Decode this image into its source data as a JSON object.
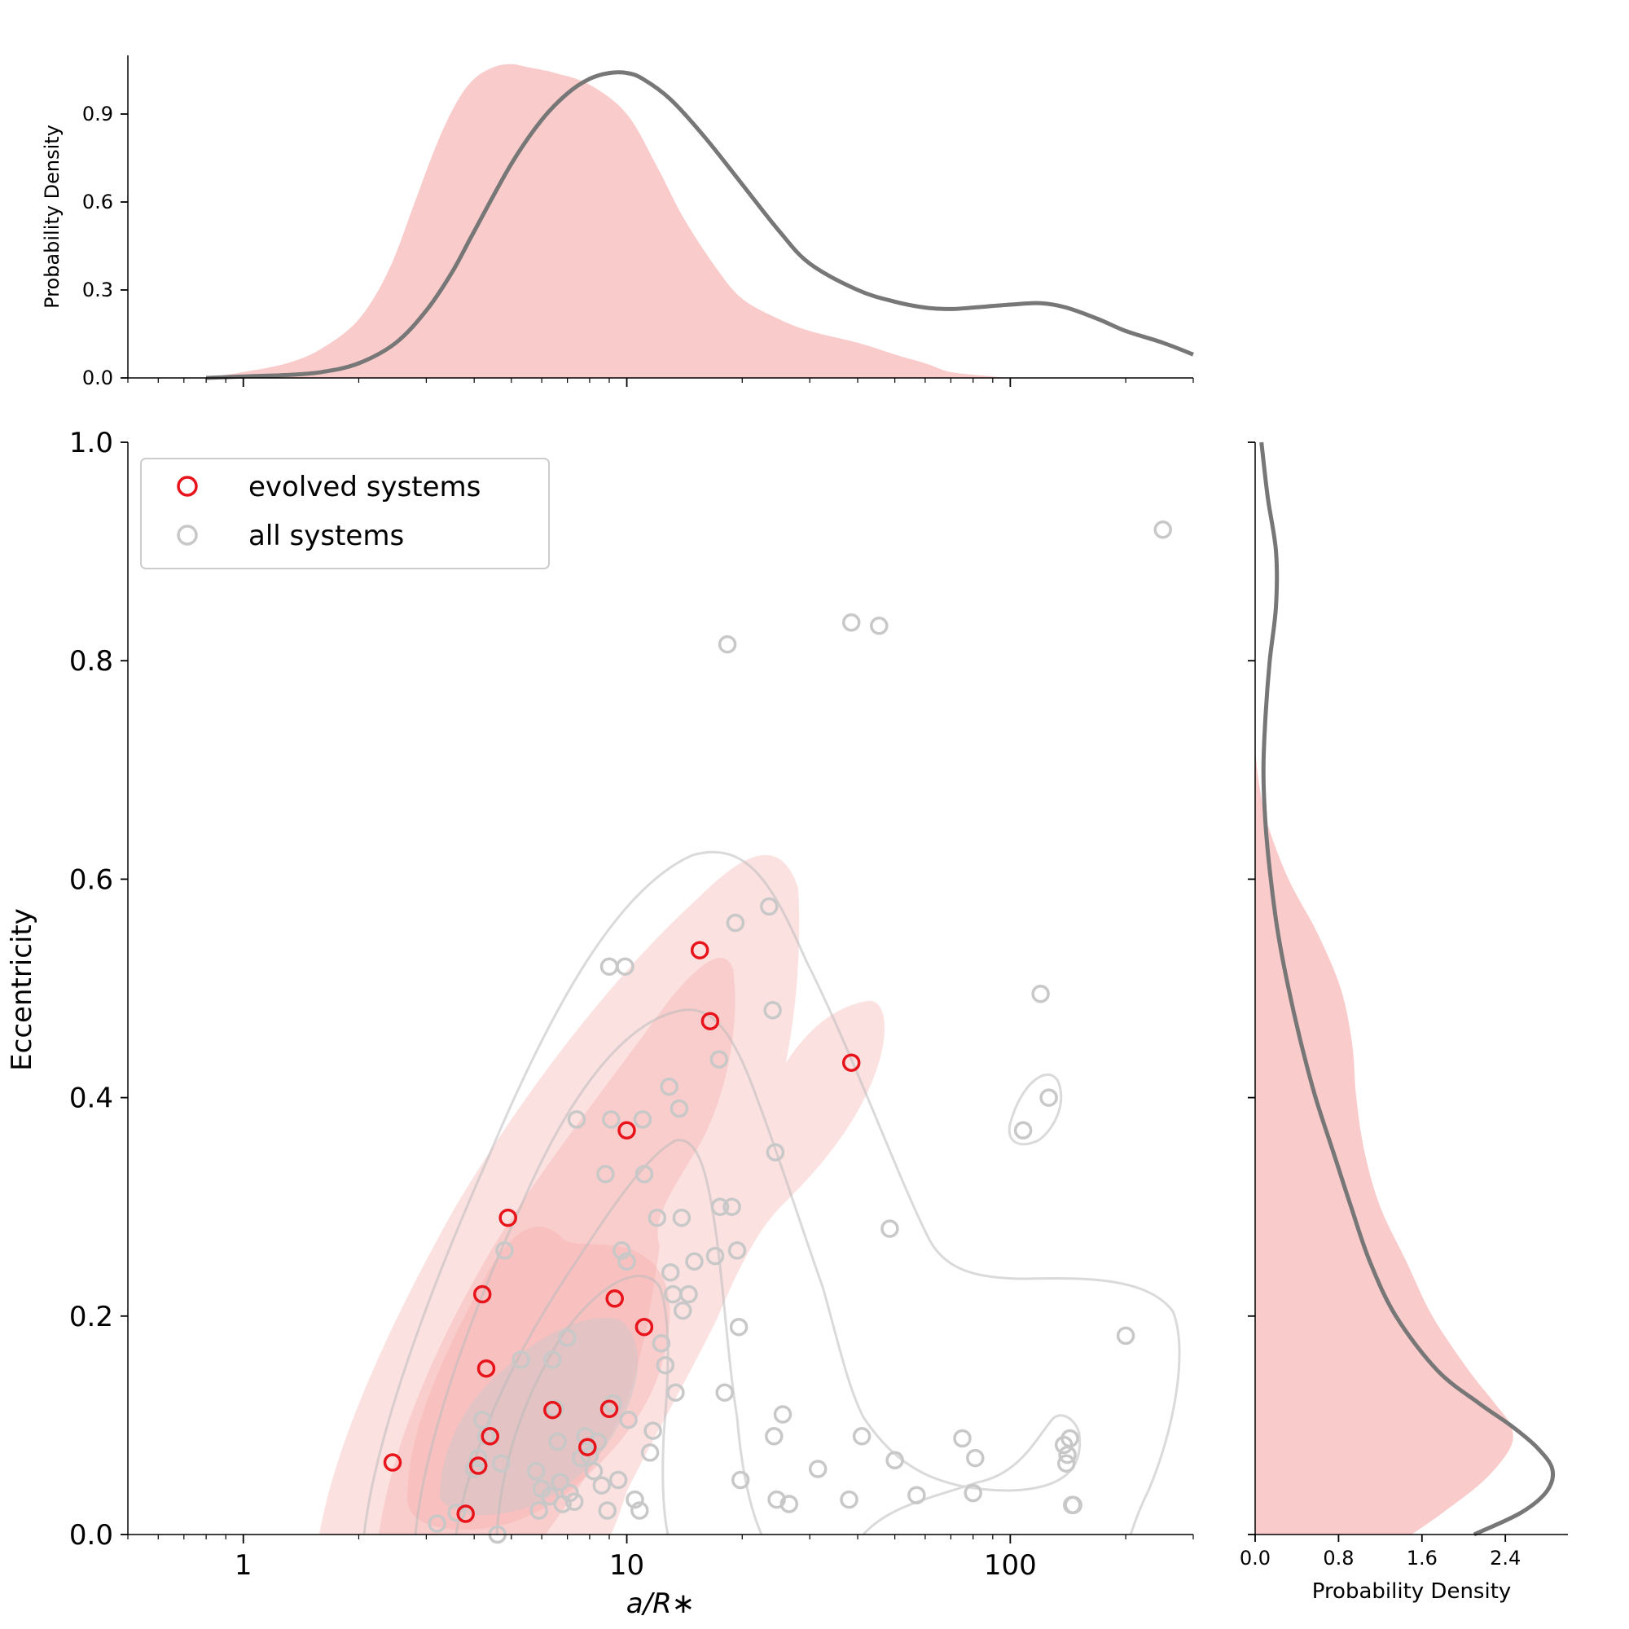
{
  "chart_data": {
    "type": "scatter",
    "xscale": "log",
    "xlim": [
      0.5,
      300
    ],
    "ylim": [
      0,
      1
    ],
    "xlabel": "a/R∗",
    "ylabel": "Eccentricity",
    "xticks": [
      {
        "value": 1,
        "label": "1"
      },
      {
        "value": 10,
        "label": "10"
      },
      {
        "value": 100,
        "label": "100"
      }
    ],
    "yticks": [
      {
        "value": 0.0,
        "label": "0.0"
      },
      {
        "value": 0.2,
        "label": "0.2"
      },
      {
        "value": 0.4,
        "label": "0.4"
      },
      {
        "value": 0.6,
        "label": "0.6"
      },
      {
        "value": 0.8,
        "label": "0.8"
      },
      {
        "value": 1.0,
        "label": "1.0"
      }
    ],
    "legend": {
      "placement": "top-left",
      "entries": [
        {
          "label": "evolved systems",
          "color": "#e8141b"
        },
        {
          "label": "all systems",
          "color": "#c8c8c8"
        }
      ]
    },
    "series": [
      {
        "name": "all systems",
        "color": "#c8c8c8",
        "points": [
          [
            3.2,
            0.01
          ],
          [
            3.6,
            0.02
          ],
          [
            4.0,
            0.06
          ],
          [
            4.1,
            0.07
          ],
          [
            4.2,
            0.105
          ],
          [
            4.3,
            0.09
          ],
          [
            4.6,
            0.0
          ],
          [
            4.7,
            0.065
          ],
          [
            4.8,
            0.26
          ],
          [
            5.3,
            0.16
          ],
          [
            5.8,
            0.058
          ],
          [
            5.9,
            0.022
          ],
          [
            6.0,
            0.042
          ],
          [
            6.3,
            0.035
          ],
          [
            6.4,
            0.16
          ],
          [
            6.5,
            0.115
          ],
          [
            6.6,
            0.085
          ],
          [
            6.7,
            0.048
          ],
          [
            6.8,
            0.028
          ],
          [
            7.0,
            0.18
          ],
          [
            7.1,
            0.038
          ],
          [
            7.3,
            0.03
          ],
          [
            7.4,
            0.38
          ],
          [
            7.6,
            0.07
          ],
          [
            7.8,
            0.09
          ],
          [
            8.0,
            0.072
          ],
          [
            8.2,
            0.058
          ],
          [
            8.4,
            0.085
          ],
          [
            8.6,
            0.045
          ],
          [
            8.8,
            0.33
          ],
          [
            8.9,
            0.022
          ],
          [
            9.0,
            0.52
          ],
          [
            9.1,
            0.38
          ],
          [
            9.2,
            0.12
          ],
          [
            9.5,
            0.05
          ],
          [
            9.7,
            0.26
          ],
          [
            9.9,
            0.52
          ],
          [
            10.0,
            0.25
          ],
          [
            10.1,
            0.105
          ],
          [
            10.5,
            0.032
          ],
          [
            10.8,
            0.022
          ],
          [
            11.0,
            0.38
          ],
          [
            11.1,
            0.33
          ],
          [
            11.5,
            0.075
          ],
          [
            11.7,
            0.095
          ],
          [
            12.0,
            0.29
          ],
          [
            12.3,
            0.175
          ],
          [
            12.6,
            0.155
          ],
          [
            12.9,
            0.41
          ],
          [
            13.0,
            0.24
          ],
          [
            13.2,
            0.22
          ],
          [
            13.4,
            0.13
          ],
          [
            13.7,
            0.39
          ],
          [
            13.9,
            0.29
          ],
          [
            14.0,
            0.205
          ],
          [
            14.5,
            0.22
          ],
          [
            15.0,
            0.25
          ],
          [
            17.0,
            0.255
          ],
          [
            17.4,
            0.435
          ],
          [
            17.5,
            0.3
          ],
          [
            18.0,
            0.13
          ],
          [
            18.3,
            0.815
          ],
          [
            18.8,
            0.3
          ],
          [
            19.2,
            0.56
          ],
          [
            19.4,
            0.26
          ],
          [
            19.6,
            0.19
          ],
          [
            19.8,
            0.05
          ],
          [
            23.5,
            0.575
          ],
          [
            24.0,
            0.48
          ],
          [
            24.4,
            0.35
          ],
          [
            24.2,
            0.09
          ],
          [
            24.6,
            0.032
          ],
          [
            25.5,
            0.11
          ],
          [
            26.5,
            0.028
          ],
          [
            31.5,
            0.06
          ],
          [
            38.0,
            0.032
          ],
          [
            38.5,
            0.835
          ],
          [
            41.0,
            0.09
          ],
          [
            45.5,
            0.832
          ],
          [
            48.5,
            0.28
          ],
          [
            50.0,
            0.068
          ],
          [
            57.0,
            0.036
          ],
          [
            75.0,
            0.088
          ],
          [
            80.0,
            0.038
          ],
          [
            81.0,
            0.07
          ],
          [
            108.0,
            0.37
          ],
          [
            120.0,
            0.495
          ],
          [
            126.0,
            0.4
          ],
          [
            138.0,
            0.082
          ],
          [
            140.0,
            0.065
          ],
          [
            141.0,
            0.073
          ],
          [
            143.0,
            0.088
          ],
          [
            145.0,
            0.027
          ],
          [
            146.0,
            0.027
          ],
          [
            200.0,
            0.182
          ],
          [
            250.0,
            0.92
          ]
        ]
      },
      {
        "name": "evolved systems",
        "color": "#e8141b",
        "points": [
          [
            2.45,
            0.066
          ],
          [
            3.8,
            0.019
          ],
          [
            4.1,
            0.063
          ],
          [
            4.2,
            0.22
          ],
          [
            4.3,
            0.152
          ],
          [
            4.4,
            0.09
          ],
          [
            4.9,
            0.29
          ],
          [
            6.4,
            0.114
          ],
          [
            7.9,
            0.08
          ],
          [
            9.0,
            0.115
          ],
          [
            9.3,
            0.216
          ],
          [
            10.0,
            0.37
          ],
          [
            11.1,
            0.19
          ],
          [
            15.5,
            0.535
          ],
          [
            16.5,
            0.47
          ],
          [
            38.5,
            0.432
          ]
        ]
      }
    ],
    "marginal_top": {
      "ylabel": "Probability Density",
      "ylim": [
        0,
        1.1
      ],
      "yticks": [
        {
          "value": 0.0,
          "label": "0.0"
        },
        {
          "value": 0.3,
          "label": "0.3"
        },
        {
          "value": 0.6,
          "label": "0.6"
        },
        {
          "value": 0.9,
          "label": "0.9"
        }
      ],
      "evolved_density": {
        "x": [
          0.8,
          1.0,
          1.3,
          1.6,
          2.0,
          2.4,
          2.8,
          3.2,
          3.6,
          4.0,
          4.5,
          5.0,
          5.5,
          6.5,
          8.0,
          10.0,
          12.0,
          14.0,
          17.0,
          20.0,
          25.0,
          30.0,
          40.0,
          50.0,
          60.0,
          70.0,
          90.0,
          100.0
        ],
        "y": [
          0.0,
          0.02,
          0.05,
          0.1,
          0.2,
          0.37,
          0.6,
          0.8,
          0.94,
          1.02,
          1.06,
          1.07,
          1.06,
          1.04,
          1.0,
          0.9,
          0.72,
          0.55,
          0.38,
          0.27,
          0.2,
          0.16,
          0.12,
          0.08,
          0.05,
          0.02,
          0.005,
          0.0
        ]
      },
      "all_density": {
        "x": [
          0.8,
          1.0,
          1.3,
          1.6,
          2.0,
          2.5,
          3.0,
          3.5,
          4.0,
          5.0,
          6.0,
          7.0,
          8.0,
          9.0,
          10.0,
          11.0,
          13.0,
          16.0,
          20.0,
          25.0,
          30.0,
          40.0,
          50.0,
          60.0,
          70.0,
          80.0,
          100.0,
          120.0,
          140.0,
          170.0,
          200.0,
          250.0,
          300.0
        ],
        "y": [
          0.0,
          0.005,
          0.01,
          0.02,
          0.05,
          0.12,
          0.23,
          0.36,
          0.5,
          0.73,
          0.88,
          0.97,
          1.02,
          1.04,
          1.04,
          1.02,
          0.95,
          0.82,
          0.66,
          0.5,
          0.39,
          0.3,
          0.26,
          0.24,
          0.235,
          0.24,
          0.25,
          0.255,
          0.24,
          0.2,
          0.16,
          0.12,
          0.08
        ]
      }
    },
    "marginal_right": {
      "xlabel": "Probability Density",
      "xlim": [
        0,
        3.0
      ],
      "xticks": [
        {
          "value": 0.0,
          "label": "0.0"
        },
        {
          "value": 0.8,
          "label": "0.8"
        },
        {
          "value": 1.6,
          "label": "1.6"
        },
        {
          "value": 2.4,
          "label": "2.4"
        }
      ],
      "evolved_density": {
        "e": [
          0.0,
          0.02,
          0.05,
          0.08,
          0.1,
          0.12,
          0.15,
          0.2,
          0.25,
          0.3,
          0.35,
          0.4,
          0.45,
          0.5,
          0.55,
          0.6,
          0.65,
          0.68,
          0.7,
          0.72
        ],
        "d": [
          1.5,
          1.8,
          2.2,
          2.45,
          2.45,
          2.3,
          2.05,
          1.7,
          1.45,
          1.2,
          1.05,
          0.97,
          0.93,
          0.82,
          0.6,
          0.32,
          0.12,
          0.05,
          0.02,
          0.0
        ]
      },
      "all_density": {
        "e": [
          0.0,
          0.02,
          0.04,
          0.06,
          0.08,
          0.1,
          0.12,
          0.15,
          0.2,
          0.25,
          0.3,
          0.35,
          0.4,
          0.45,
          0.5,
          0.55,
          0.6,
          0.65,
          0.7,
          0.75,
          0.8,
          0.85,
          0.9,
          0.95,
          1.0
        ],
        "d": [
          2.1,
          2.55,
          2.8,
          2.85,
          2.7,
          2.45,
          2.15,
          1.75,
          1.35,
          1.1,
          0.92,
          0.75,
          0.58,
          0.44,
          0.32,
          0.22,
          0.15,
          0.1,
          0.08,
          0.1,
          0.14,
          0.2,
          0.2,
          0.12,
          0.06
        ]
      }
    }
  }
}
